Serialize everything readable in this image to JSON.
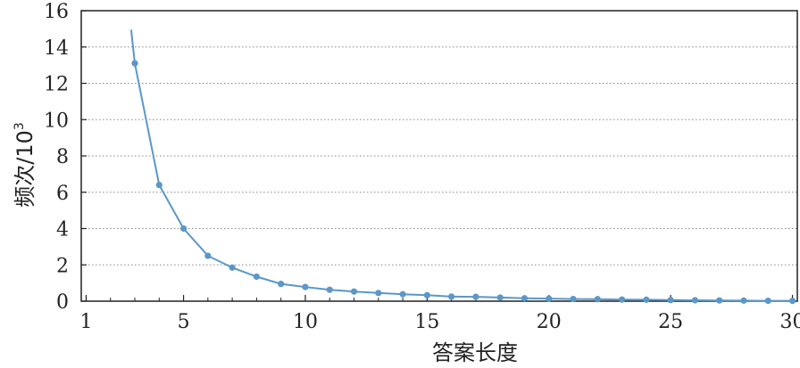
{
  "chart_data": {
    "type": "line",
    "xlabel": "答案长度",
    "ylabel_main": "频次/10",
    "ylabel_sup": "3",
    "xlim": [
      0.8,
      30.2
    ],
    "ylim": [
      0,
      16
    ],
    "xticks": [
      1,
      5,
      10,
      15,
      20,
      25,
      30
    ],
    "yticks": [
      0,
      2,
      4,
      6,
      8,
      10,
      12,
      14,
      16
    ],
    "xticks_minor": [
      2,
      3,
      4,
      6,
      7,
      8,
      9,
      11,
      12,
      13,
      14,
      16,
      17,
      18,
      19,
      21,
      22,
      23,
      24,
      26,
      27,
      28,
      29
    ],
    "grid": "horizontal dotted",
    "colors": {
      "series": "#5b97c9",
      "axis": "#222222",
      "grid": "#888888"
    },
    "series": [
      {
        "line_start": {
          "x": 2.85,
          "y": 14.95
        },
        "x": [
          3,
          4,
          5,
          6,
          7,
          8,
          9,
          10,
          11,
          12,
          13,
          14,
          15,
          16,
          17,
          18,
          19,
          20,
          21,
          22,
          23,
          24,
          25,
          26,
          27,
          28,
          29,
          30
        ],
        "values": [
          13.1,
          6.4,
          4.0,
          2.5,
          1.85,
          1.35,
          0.95,
          0.78,
          0.63,
          0.53,
          0.45,
          0.38,
          0.33,
          0.25,
          0.24,
          0.2,
          0.16,
          0.14,
          0.12,
          0.11,
          0.09,
          0.08,
          0.06,
          0.05,
          0.04,
          0.03,
          0.02,
          0.02
        ]
      }
    ]
  }
}
